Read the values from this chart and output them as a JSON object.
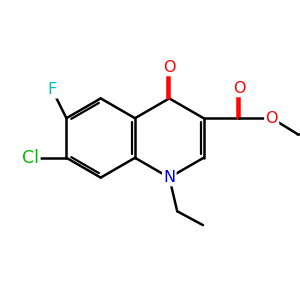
{
  "background_color": "#ffffff",
  "atom_colors": {
    "O": "#ff0000",
    "N": "#0000dd",
    "F": "#00bbbb",
    "Cl": "#00bb00",
    "C": "#000000"
  },
  "bond_lw": 1.8,
  "font_size": 11.5,
  "figsize": [
    3.0,
    3.0
  ],
  "dpi": 100
}
